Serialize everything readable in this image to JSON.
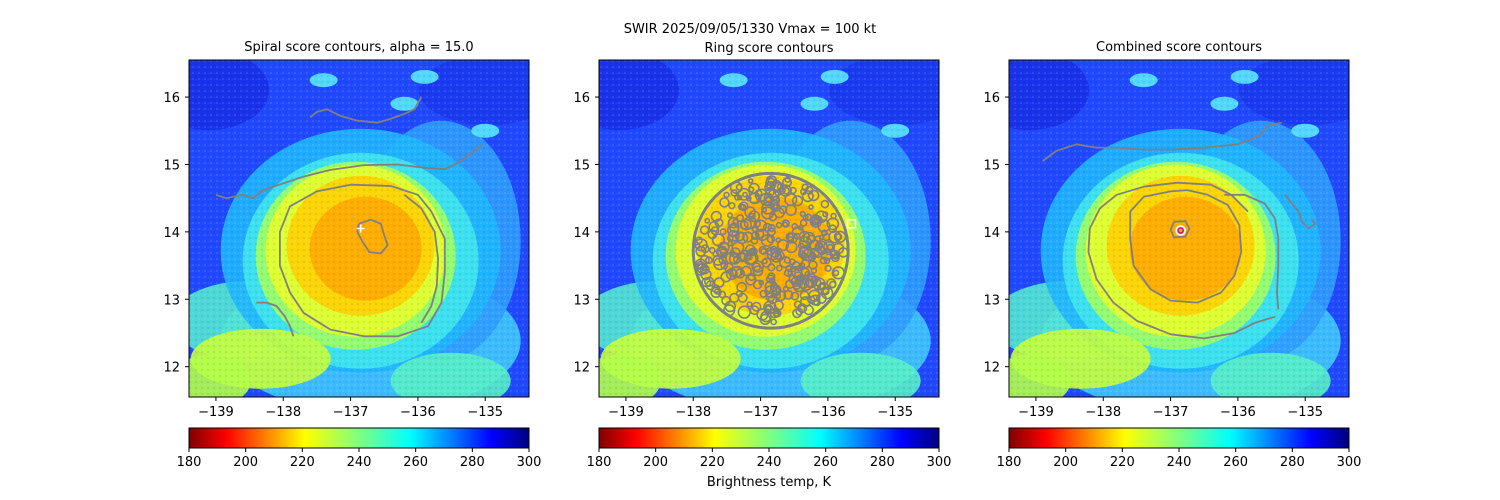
{
  "figure": {
    "suptitle_line1": "SWIR  2025/09/05/1330    Vmax = 100 kt",
    "colorbar_label": "Brightness temp, K",
    "colormap": "jet_r",
    "colors": {
      "contour": "#808080",
      "marker_ring": "#ffffff",
      "marker_combined_outer": "#ffffff",
      "marker_combined_inner": "#c71585",
      "marker_spiral": "#ffffff"
    }
  },
  "chart_data": [
    {
      "type": "heatmap",
      "title": "Spiral score contours, alpha = 15.0",
      "xlim": [
        -139.4,
        -134.35
      ],
      "ylim": [
        11.55,
        16.55
      ],
      "xticks": [
        -139,
        -138,
        -137,
        -136,
        -135
      ],
      "yticks": [
        12,
        13,
        14,
        15,
        16
      ],
      "xticklabels": [
        "−139",
        "−138",
        "−137",
        "−136",
        "−135"
      ],
      "yticklabels": [
        "12",
        "13",
        "14",
        "15",
        "16"
      ],
      "colorbar": {
        "range": [
          180,
          300
        ],
        "ticks": [
          "180",
          "200",
          "220",
          "240",
          "260",
          "280",
          "300"
        ]
      },
      "grid": false,
      "center_marker": {
        "lon": -136.85,
        "lat": 14.05,
        "symbol": "+"
      },
      "contours": [
        {
          "name": "inner",
          "points": [
            [
              -136.88,
              14.12
            ],
            [
              -136.7,
              14.18
            ],
            [
              -136.55,
              14.12
            ],
            [
              -136.5,
              13.95
            ],
            [
              -136.45,
              13.8
            ],
            [
              -136.55,
              13.68
            ],
            [
              -136.72,
              13.7
            ],
            [
              -136.82,
              13.85
            ],
            [
              -136.9,
              14.0
            ],
            [
              -136.88,
              14.12
            ]
          ]
        },
        {
          "name": "ring",
          "points": [
            [
              -137.0,
              14.7
            ],
            [
              -137.5,
              14.6
            ],
            [
              -137.9,
              14.38
            ],
            [
              -138.05,
              14.0
            ],
            [
              -138.05,
              13.5
            ],
            [
              -137.9,
              13.1
            ],
            [
              -137.7,
              12.8
            ],
            [
              -137.3,
              12.55
            ],
            [
              -136.8,
              12.45
            ],
            [
              -136.3,
              12.45
            ],
            [
              -135.85,
              12.6
            ],
            [
              -135.65,
              12.95
            ],
            [
              -135.6,
              13.4
            ],
            [
              -135.6,
              13.9
            ],
            [
              -135.8,
              14.3
            ],
            [
              -136.0,
              14.55
            ],
            [
              -136.4,
              14.68
            ],
            [
              -137.0,
              14.7
            ]
          ]
        },
        {
          "name": "outer",
          "points": [
            [
              -139.0,
              14.55
            ],
            [
              -138.85,
              14.5
            ],
            [
              -138.6,
              14.55
            ],
            [
              -138.45,
              14.5
            ],
            [
              -138.3,
              14.62
            ],
            [
              -138.0,
              14.72
            ],
            [
              -137.7,
              14.82
            ],
            [
              -137.3,
              14.92
            ],
            [
              -136.8,
              14.99
            ],
            [
              -136.3,
              15.0
            ],
            [
              -135.9,
              14.95
            ],
            [
              -135.6,
              14.93
            ],
            [
              -135.45,
              15.0
            ],
            [
              -135.3,
              15.1
            ],
            [
              -135.1,
              15.25
            ],
            [
              -135.05,
              15.3
            ]
          ]
        },
        {
          "name": "spiral-tail",
          "points": [
            [
              -136.2,
              14.55
            ],
            [
              -135.95,
              14.35
            ],
            [
              -135.75,
              14.0
            ],
            [
              -135.7,
              13.6
            ],
            [
              -135.72,
              13.2
            ],
            [
              -135.8,
              12.9
            ],
            [
              -135.95,
              12.65
            ]
          ]
        },
        {
          "name": "north",
          "points": [
            [
              -137.6,
              15.7
            ],
            [
              -137.5,
              15.78
            ],
            [
              -137.35,
              15.82
            ],
            [
              -137.15,
              15.72
            ],
            [
              -136.9,
              15.65
            ],
            [
              -136.6,
              15.62
            ],
            [
              -136.4,
              15.68
            ],
            [
              -136.2,
              15.75
            ],
            [
              -136.05,
              15.82
            ],
            [
              -135.95,
              16.0
            ]
          ]
        },
        {
          "name": "southwest",
          "points": [
            [
              -138.4,
              12.95
            ],
            [
              -138.25,
              12.95
            ],
            [
              -138.1,
              12.9
            ],
            [
              -137.98,
              12.75
            ],
            [
              -137.9,
              12.6
            ],
            [
              -137.85,
              12.45
            ]
          ]
        }
      ]
    },
    {
      "type": "heatmap",
      "title": "Ring score contours",
      "xlim": [
        -139.4,
        -134.35
      ],
      "ylim": [
        11.55,
        16.55
      ],
      "xticks": [
        -139,
        -138,
        -137,
        -136,
        -135
      ],
      "yticks": [
        12,
        13,
        14,
        15,
        16
      ],
      "xticklabels": [
        "−139",
        "−138",
        "−137",
        "−136",
        "−135"
      ],
      "yticklabels": [
        "12",
        "13",
        "14",
        "15",
        "16"
      ],
      "colorbar": {
        "range": [
          180,
          300
        ],
        "ticks": [
          "180",
          "200",
          "220",
          "240",
          "260",
          "280",
          "300"
        ]
      },
      "grid": false,
      "center_marker": {
        "lon": -135.65,
        "lat": 14.12,
        "symbol": "square"
      },
      "disk": {
        "lon": -136.85,
        "lat": 13.72,
        "radius": 1.15
      }
    },
    {
      "type": "heatmap",
      "title": "Combined score contours",
      "xlim": [
        -139.4,
        -134.35
      ],
      "ylim": [
        11.55,
        16.55
      ],
      "xticks": [
        -139,
        -138,
        -137,
        -136,
        -135
      ],
      "yticks": [
        12,
        13,
        14,
        15,
        16
      ],
      "xticklabels": [
        "−139",
        "−138",
        "−137",
        "−136",
        "−135"
      ],
      "yticklabels": [
        "12",
        "13",
        "14",
        "15",
        "16"
      ],
      "colorbar": {
        "range": [
          180,
          300
        ],
        "ticks": [
          "180",
          "200",
          "220",
          "240",
          "260",
          "280",
          "300"
        ]
      },
      "grid": false,
      "center_marker": {
        "lon": -136.85,
        "lat": 14.02,
        "symbol": "circle"
      },
      "contours": [
        {
          "name": "inner",
          "points": [
            [
              -136.95,
              14.15
            ],
            [
              -136.78,
              14.16
            ],
            [
              -136.72,
              14.05
            ],
            [
              -136.78,
              13.93
            ],
            [
              -136.95,
              13.92
            ],
            [
              -137.0,
              14.03
            ],
            [
              -136.95,
              14.15
            ]
          ]
        },
        {
          "name": "ring",
          "points": [
            [
              -137.0,
              14.6
            ],
            [
              -137.4,
              14.52
            ],
            [
              -137.6,
              14.3
            ],
            [
              -137.6,
              13.9
            ],
            [
              -137.55,
              13.5
            ],
            [
              -137.3,
              13.15
            ],
            [
              -137.0,
              12.98
            ],
            [
              -136.6,
              12.95
            ],
            [
              -136.25,
              13.1
            ],
            [
              -136.05,
              13.35
            ],
            [
              -135.95,
              13.7
            ],
            [
              -135.98,
              14.1
            ],
            [
              -136.15,
              14.4
            ],
            [
              -136.45,
              14.55
            ],
            [
              -136.75,
              14.62
            ],
            [
              -137.0,
              14.6
            ]
          ]
        },
        {
          "name": "outer",
          "points": [
            [
              -135.85,
              14.3
            ],
            [
              -136.1,
              14.55
            ],
            [
              -136.4,
              14.7
            ],
            [
              -136.9,
              14.73
            ],
            [
              -137.4,
              14.67
            ],
            [
              -137.8,
              14.55
            ],
            [
              -138.05,
              14.35
            ],
            [
              -138.2,
              14.05
            ],
            [
              -138.22,
              13.7
            ],
            [
              -138.1,
              13.3
            ],
            [
              -137.85,
              12.95
            ],
            [
              -137.5,
              12.68
            ],
            [
              -137.0,
              12.48
            ],
            [
              -136.5,
              12.42
            ],
            [
              -136.05,
              12.5
            ],
            [
              -135.75,
              12.65
            ],
            [
              -135.45,
              12.74
            ]
          ]
        },
        {
          "name": "spiral-arm",
          "points": [
            [
              -136.2,
              14.55
            ],
            [
              -135.9,
              14.55
            ],
            [
              -135.6,
              14.42
            ],
            [
              -135.45,
              14.2
            ],
            [
              -135.4,
              13.9
            ],
            [
              -135.4,
              13.5
            ],
            [
              -135.42,
              13.1
            ],
            [
              -135.4,
              12.85
            ]
          ]
        },
        {
          "name": "east-hook",
          "points": [
            [
              -135.3,
              14.55
            ],
            [
              -135.1,
              14.3
            ],
            [
              -135.05,
              14.15
            ],
            [
              -134.95,
              14.05
            ],
            [
              -134.85,
              14.12
            ],
            [
              -134.9,
              14.18
            ]
          ]
        },
        {
          "name": "north",
          "points": [
            [
              -138.9,
              15.05
            ],
            [
              -138.7,
              15.2
            ],
            [
              -138.4,
              15.3
            ],
            [
              -138.1,
              15.25
            ],
            [
              -137.8,
              15.25
            ],
            [
              -137.4,
              15.22
            ],
            [
              -137.0,
              15.22
            ],
            [
              -136.5,
              15.25
            ],
            [
              -136.0,
              15.3
            ],
            [
              -135.7,
              15.42
            ],
            [
              -135.55,
              15.58
            ],
            [
              -135.35,
              15.62
            ]
          ]
        }
      ]
    }
  ]
}
